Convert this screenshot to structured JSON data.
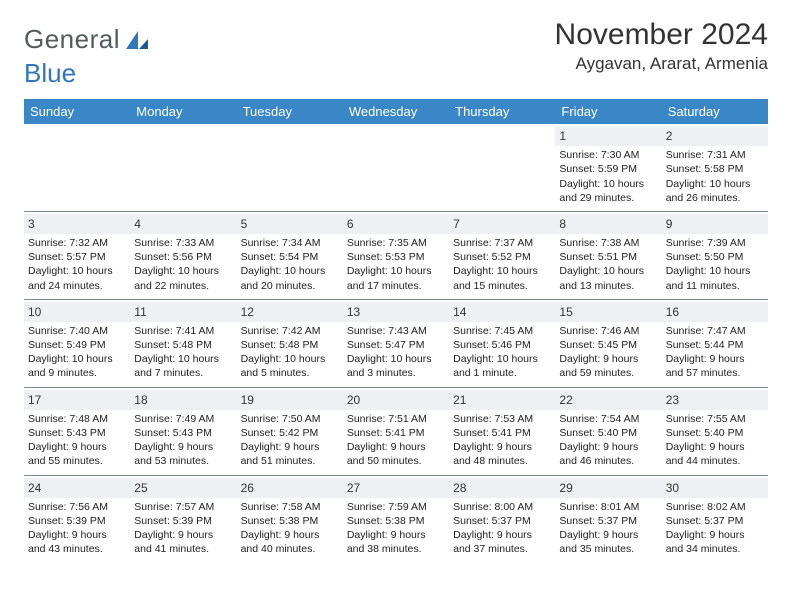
{
  "brand": {
    "part1": "General",
    "part2": "Blue"
  },
  "title": "November 2024",
  "location": "Aygavan, Ararat, Armenia",
  "colors": {
    "header_bg": "#3a87c8",
    "header_fg": "#ffffff",
    "daynum_bg": "#eef1f3",
    "rule": "#7a8b99",
    "logo_gray": "#555a5f",
    "logo_blue": "#2f78bd"
  },
  "weekdays": [
    "Sunday",
    "Monday",
    "Tuesday",
    "Wednesday",
    "Thursday",
    "Friday",
    "Saturday"
  ],
  "weeks": [
    [
      null,
      null,
      null,
      null,
      null,
      {
        "day": "1",
        "sunrise": "Sunrise: 7:30 AM",
        "sunset": "Sunset: 5:59 PM",
        "daylight": "Daylight: 10 hours and 29 minutes."
      },
      {
        "day": "2",
        "sunrise": "Sunrise: 7:31 AM",
        "sunset": "Sunset: 5:58 PM",
        "daylight": "Daylight: 10 hours and 26 minutes."
      }
    ],
    [
      {
        "day": "3",
        "sunrise": "Sunrise: 7:32 AM",
        "sunset": "Sunset: 5:57 PM",
        "daylight": "Daylight: 10 hours and 24 minutes."
      },
      {
        "day": "4",
        "sunrise": "Sunrise: 7:33 AM",
        "sunset": "Sunset: 5:56 PM",
        "daylight": "Daylight: 10 hours and 22 minutes."
      },
      {
        "day": "5",
        "sunrise": "Sunrise: 7:34 AM",
        "sunset": "Sunset: 5:54 PM",
        "daylight": "Daylight: 10 hours and 20 minutes."
      },
      {
        "day": "6",
        "sunrise": "Sunrise: 7:35 AM",
        "sunset": "Sunset: 5:53 PM",
        "daylight": "Daylight: 10 hours and 17 minutes."
      },
      {
        "day": "7",
        "sunrise": "Sunrise: 7:37 AM",
        "sunset": "Sunset: 5:52 PM",
        "daylight": "Daylight: 10 hours and 15 minutes."
      },
      {
        "day": "8",
        "sunrise": "Sunrise: 7:38 AM",
        "sunset": "Sunset: 5:51 PM",
        "daylight": "Daylight: 10 hours and 13 minutes."
      },
      {
        "day": "9",
        "sunrise": "Sunrise: 7:39 AM",
        "sunset": "Sunset: 5:50 PM",
        "daylight": "Daylight: 10 hours and 11 minutes."
      }
    ],
    [
      {
        "day": "10",
        "sunrise": "Sunrise: 7:40 AM",
        "sunset": "Sunset: 5:49 PM",
        "daylight": "Daylight: 10 hours and 9 minutes."
      },
      {
        "day": "11",
        "sunrise": "Sunrise: 7:41 AM",
        "sunset": "Sunset: 5:48 PM",
        "daylight": "Daylight: 10 hours and 7 minutes."
      },
      {
        "day": "12",
        "sunrise": "Sunrise: 7:42 AM",
        "sunset": "Sunset: 5:48 PM",
        "daylight": "Daylight: 10 hours and 5 minutes."
      },
      {
        "day": "13",
        "sunrise": "Sunrise: 7:43 AM",
        "sunset": "Sunset: 5:47 PM",
        "daylight": "Daylight: 10 hours and 3 minutes."
      },
      {
        "day": "14",
        "sunrise": "Sunrise: 7:45 AM",
        "sunset": "Sunset: 5:46 PM",
        "daylight": "Daylight: 10 hours and 1 minute."
      },
      {
        "day": "15",
        "sunrise": "Sunrise: 7:46 AM",
        "sunset": "Sunset: 5:45 PM",
        "daylight": "Daylight: 9 hours and 59 minutes."
      },
      {
        "day": "16",
        "sunrise": "Sunrise: 7:47 AM",
        "sunset": "Sunset: 5:44 PM",
        "daylight": "Daylight: 9 hours and 57 minutes."
      }
    ],
    [
      {
        "day": "17",
        "sunrise": "Sunrise: 7:48 AM",
        "sunset": "Sunset: 5:43 PM",
        "daylight": "Daylight: 9 hours and 55 minutes."
      },
      {
        "day": "18",
        "sunrise": "Sunrise: 7:49 AM",
        "sunset": "Sunset: 5:43 PM",
        "daylight": "Daylight: 9 hours and 53 minutes."
      },
      {
        "day": "19",
        "sunrise": "Sunrise: 7:50 AM",
        "sunset": "Sunset: 5:42 PM",
        "daylight": "Daylight: 9 hours and 51 minutes."
      },
      {
        "day": "20",
        "sunrise": "Sunrise: 7:51 AM",
        "sunset": "Sunset: 5:41 PM",
        "daylight": "Daylight: 9 hours and 50 minutes."
      },
      {
        "day": "21",
        "sunrise": "Sunrise: 7:53 AM",
        "sunset": "Sunset: 5:41 PM",
        "daylight": "Daylight: 9 hours and 48 minutes."
      },
      {
        "day": "22",
        "sunrise": "Sunrise: 7:54 AM",
        "sunset": "Sunset: 5:40 PM",
        "daylight": "Daylight: 9 hours and 46 minutes."
      },
      {
        "day": "23",
        "sunrise": "Sunrise: 7:55 AM",
        "sunset": "Sunset: 5:40 PM",
        "daylight": "Daylight: 9 hours and 44 minutes."
      }
    ],
    [
      {
        "day": "24",
        "sunrise": "Sunrise: 7:56 AM",
        "sunset": "Sunset: 5:39 PM",
        "daylight": "Daylight: 9 hours and 43 minutes."
      },
      {
        "day": "25",
        "sunrise": "Sunrise: 7:57 AM",
        "sunset": "Sunset: 5:39 PM",
        "daylight": "Daylight: 9 hours and 41 minutes."
      },
      {
        "day": "26",
        "sunrise": "Sunrise: 7:58 AM",
        "sunset": "Sunset: 5:38 PM",
        "daylight": "Daylight: 9 hours and 40 minutes."
      },
      {
        "day": "27",
        "sunrise": "Sunrise: 7:59 AM",
        "sunset": "Sunset: 5:38 PM",
        "daylight": "Daylight: 9 hours and 38 minutes."
      },
      {
        "day": "28",
        "sunrise": "Sunrise: 8:00 AM",
        "sunset": "Sunset: 5:37 PM",
        "daylight": "Daylight: 9 hours and 37 minutes."
      },
      {
        "day": "29",
        "sunrise": "Sunrise: 8:01 AM",
        "sunset": "Sunset: 5:37 PM",
        "daylight": "Daylight: 9 hours and 35 minutes."
      },
      {
        "day": "30",
        "sunrise": "Sunrise: 8:02 AM",
        "sunset": "Sunset: 5:37 PM",
        "daylight": "Daylight: 9 hours and 34 minutes."
      }
    ]
  ]
}
